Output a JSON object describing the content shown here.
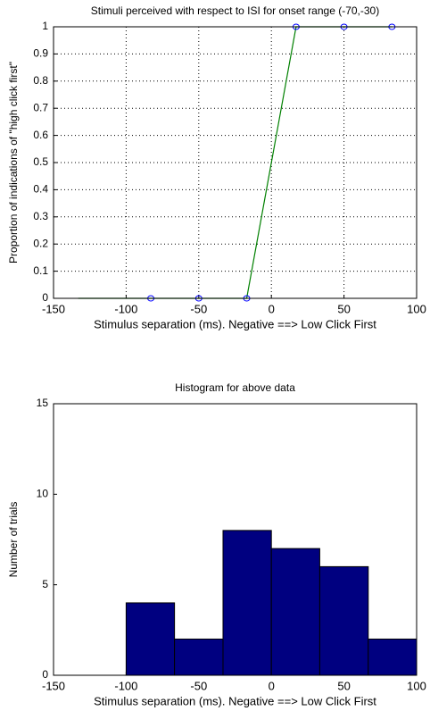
{
  "chart_data": [
    {
      "type": "line",
      "title": "Stimuli perceived with respect to ISI for onset range (-70,-30)",
      "x_label": "Stimulus separation (ms). Negative ==> Low Click First",
      "y_label": "Proportion of indications of \"high click first\"",
      "x": [
        -133,
        -83,
        -50,
        -17,
        17,
        50,
        83
      ],
      "series": [
        {
          "color": "#008000",
          "values": [
            0,
            0,
            0,
            0,
            1,
            1,
            1
          ],
          "marker": false,
          "line": true
        },
        {
          "color": "#0000ff",
          "values": [
            null,
            0,
            0,
            0,
            1,
            1,
            1
          ],
          "marker": true,
          "line": false
        }
      ],
      "xlim": [
        -150,
        100
      ],
      "xticks": [
        -150,
        -100,
        -50,
        0,
        50,
        100
      ],
      "ylim": [
        0,
        1
      ],
      "yticks": [
        0,
        0.1,
        0.2,
        0.3,
        0.4,
        0.5,
        0.6,
        0.7,
        0.8,
        0.9,
        1
      ],
      "grid": true
    },
    {
      "type": "histogram",
      "title": "Histogram for above data",
      "x_label": "Stimulus separation (ms). Negative ==> Low Click First",
      "y_label": "Number of trials",
      "bins": [
        -100,
        -66.7,
        -33.3,
        0,
        33.3,
        66.7,
        100
      ],
      "values": [
        4,
        2,
        8,
        7,
        6,
        2
      ],
      "color": "#000080",
      "xlim": [
        -150,
        100
      ],
      "xticks": [
        -150,
        -100,
        -50,
        0,
        50,
        100
      ],
      "ylim": [
        0,
        15
      ],
      "yticks": [
        0,
        5,
        10,
        15
      ],
      "grid": false
    }
  ]
}
